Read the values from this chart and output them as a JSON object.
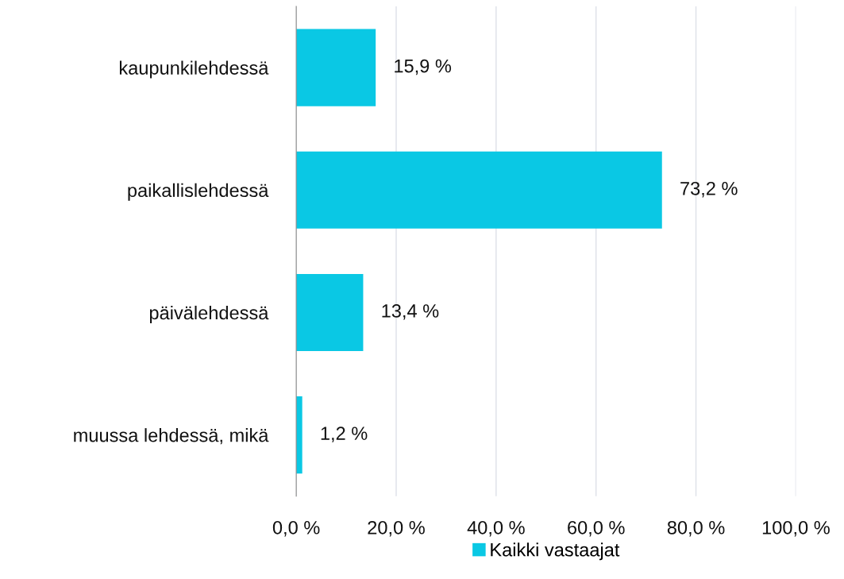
{
  "chart_data": {
    "type": "bar",
    "orientation": "horizontal",
    "categories": [
      "kaupunkilehdessä",
      "paikallislehdessä",
      "päivälehdessä",
      "muussa lehdessä, mikä"
    ],
    "series": [
      {
        "name": "Kaikki vastaajat",
        "color": "#0ac8e4",
        "values": [
          15.9,
          73.2,
          13.4,
          1.2
        ],
        "value_labels": [
          "15,9 %",
          "73,2 %",
          "13,4 %",
          "1,2 %"
        ]
      }
    ],
    "xlim": [
      0,
      100
    ],
    "xticks": [
      {
        "value": 0,
        "label": "0,0 %"
      },
      {
        "value": 20,
        "label": "20,0 %"
      },
      {
        "value": 40,
        "label": "40,0 %"
      },
      {
        "value": 60,
        "label": "60,0 %"
      },
      {
        "value": 80,
        "label": "80,0 %"
      },
      {
        "value": 100,
        "label": "100,0 %"
      }
    ],
    "grid": "x",
    "legend": "bottom"
  }
}
